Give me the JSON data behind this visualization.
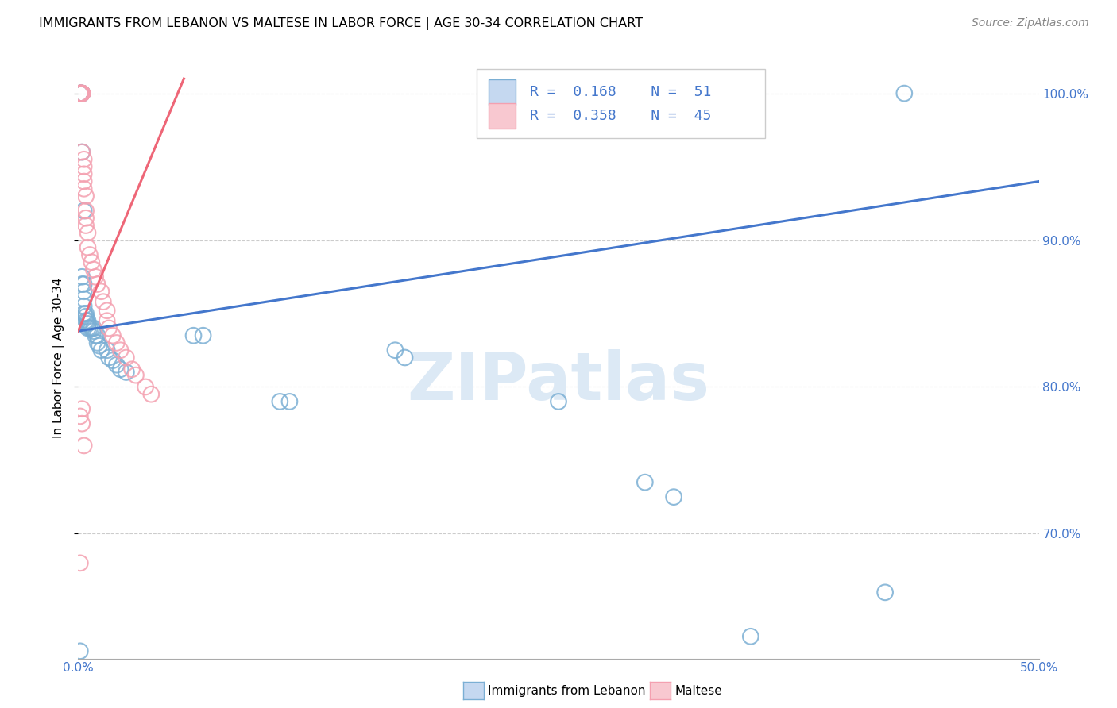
{
  "title": "IMMIGRANTS FROM LEBANON VS MALTESE IN LABOR FORCE | AGE 30-34 CORRELATION CHART",
  "source": "Source: ZipAtlas.com",
  "ylabel": "In Labor Force | Age 30-34",
  "xmin": 0.0,
  "xmax": 0.5,
  "ymin": 0.615,
  "ymax": 1.025,
  "yticks": [
    0.7,
    0.8,
    0.9,
    1.0
  ],
  "legend_blue_R": "0.168",
  "legend_blue_N": "51",
  "legend_pink_R": "0.358",
  "legend_pink_N": "45",
  "blue_color": "#7BAFD4",
  "pink_color": "#F4A0B0",
  "blue_line_color": "#4477CC",
  "pink_line_color": "#EE6677",
  "watermark_color": "#DCE9F5",
  "blue_scatter_x": [
    0.001,
    0.001,
    0.001,
    0.001,
    0.002,
    0.002,
    0.002,
    0.002,
    0.002,
    0.002,
    0.003,
    0.003,
    0.003,
    0.003,
    0.003,
    0.004,
    0.004,
    0.004,
    0.005,
    0.005,
    0.005,
    0.006,
    0.007,
    0.008,
    0.008,
    0.009,
    0.01,
    0.01,
    0.011,
    0.012,
    0.015,
    0.016,
    0.018,
    0.02,
    0.022,
    0.025,
    0.06,
    0.065,
    0.105,
    0.11,
    0.165,
    0.17,
    0.25,
    0.295,
    0.31,
    0.35,
    0.42,
    0.43,
    0.002,
    0.003,
    0.001
  ],
  "blue_scatter_y": [
    1.0,
    1.0,
    1.0,
    1.0,
    1.0,
    1.0,
    1.0,
    1.0,
    0.875,
    0.87,
    0.87,
    0.865,
    0.86,
    0.855,
    0.85,
    0.85,
    0.848,
    0.845,
    0.845,
    0.843,
    0.84,
    0.84,
    0.84,
    0.84,
    0.838,
    0.835,
    0.835,
    0.83,
    0.828,
    0.825,
    0.825,
    0.82,
    0.818,
    0.815,
    0.812,
    0.81,
    0.835,
    0.835,
    0.79,
    0.79,
    0.825,
    0.82,
    0.79,
    0.735,
    0.725,
    0.63,
    0.66,
    1.0,
    0.96,
    0.92,
    0.62
  ],
  "pink_scatter_x": [
    0.001,
    0.001,
    0.001,
    0.001,
    0.001,
    0.002,
    0.002,
    0.002,
    0.002,
    0.002,
    0.002,
    0.003,
    0.003,
    0.003,
    0.003,
    0.003,
    0.004,
    0.004,
    0.004,
    0.004,
    0.005,
    0.005,
    0.006,
    0.007,
    0.008,
    0.009,
    0.01,
    0.012,
    0.013,
    0.015,
    0.015,
    0.016,
    0.018,
    0.02,
    0.022,
    0.025,
    0.028,
    0.03,
    0.035,
    0.038,
    0.002,
    0.001,
    0.002,
    0.003,
    0.001
  ],
  "pink_scatter_y": [
    1.0,
    1.0,
    1.0,
    1.0,
    1.0,
    1.0,
    1.0,
    1.0,
    1.0,
    1.0,
    0.96,
    0.955,
    0.95,
    0.945,
    0.94,
    0.935,
    0.93,
    0.92,
    0.915,
    0.91,
    0.905,
    0.895,
    0.89,
    0.885,
    0.88,
    0.875,
    0.87,
    0.865,
    0.858,
    0.852,
    0.845,
    0.84,
    0.835,
    0.83,
    0.825,
    0.82,
    0.812,
    0.808,
    0.8,
    0.795,
    0.785,
    0.78,
    0.775,
    0.76,
    0.68
  ],
  "blue_trend_x": [
    0.0,
    0.5
  ],
  "blue_trend_y": [
    0.838,
    0.94
  ],
  "pink_trend_x": [
    0.0,
    0.055
  ],
  "pink_trend_y": [
    0.838,
    1.01
  ]
}
